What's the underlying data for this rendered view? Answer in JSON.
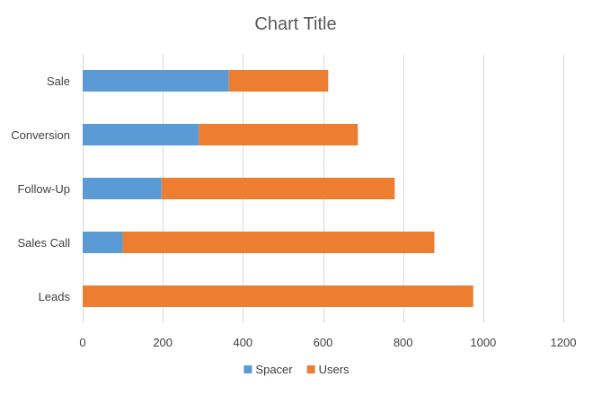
{
  "chart_data": {
    "type": "bar",
    "orientation": "horizontal",
    "stacked": true,
    "title": "Chart Title",
    "xlabel": "",
    "ylabel": "",
    "categories": [
      "Sale",
      "Conversion",
      "Follow-Up",
      "Sales Call",
      "Leads"
    ],
    "series": [
      {
        "name": "Spacer",
        "color": "#5b9bd5",
        "values": [
          365,
          290,
          197,
          100,
          0
        ]
      },
      {
        "name": "Users",
        "color": "#ed7d31",
        "values": [
          248,
          397,
          582,
          778,
          975
        ]
      }
    ],
    "xlim": [
      0,
      1200
    ],
    "xticks": [
      0,
      200,
      400,
      600,
      800,
      1000,
      1200
    ],
    "xtick_labels": [
      "0",
      "200",
      "400",
      "600",
      "800",
      "1000",
      "1200"
    ],
    "grid": true,
    "legend_position": "bottom"
  }
}
